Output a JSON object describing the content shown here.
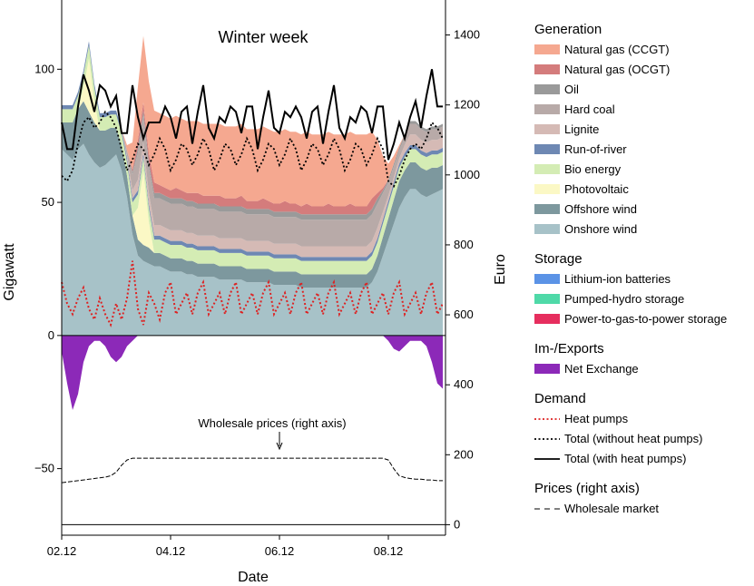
{
  "chart_data": {
    "type": "area",
    "title": "Winter week",
    "xlabel": "Date",
    "ylabel": "Gigawatt",
    "ylabel_right": "Euro",
    "ylim": [
      -75,
      126
    ],
    "ylim_right": [
      -30,
      1500
    ],
    "yticks": [
      -50,
      0,
      50,
      100
    ],
    "ytick_labels": [
      "−50",
      "0",
      "50",
      "100"
    ],
    "yticks_right": [
      0,
      200,
      400,
      600,
      800,
      1000,
      1200,
      1400
    ],
    "ytick_labels_right": [
      "0",
      "200",
      "400",
      "600",
      "800",
      "1000",
      "1200",
      "1400"
    ],
    "xlim_days": [
      2,
      9.05
    ],
    "xticks": [
      2,
      4,
      6,
      8
    ],
    "xtick_labels": [
      "02.12",
      "04.12",
      "06.12",
      "08.12"
    ],
    "series_colors": {
      "onshore": "#a7c2c8",
      "offshore": "#7d989e",
      "pv": "#fbf8c5",
      "bio": "#d4ecb4",
      "ror": "#6e88b3",
      "lignite": "#d5bab5",
      "hardcoal": "#b8aaa8",
      "oil": "#9a9a9a",
      "ocgt": "#d47c7c",
      "ccgt": "#f5a890",
      "battery": "#5b93e6",
      "phs": "#4fd9a8",
      "p2g": "#e62e5e",
      "exchange": "#8c29b8",
      "heatpumps": "#dd2222",
      "demand": "#000000",
      "price": "#000000"
    },
    "annotation": "Wholesale prices (right axis)",
    "annotation_x_day": 6,
    "legend": {
      "sections": [
        {
          "title": "Generation",
          "items": [
            {
              "label": "Natural gas (CCGT)",
              "key": "ccgt",
              "kind": "patch"
            },
            {
              "label": "Natural gas (OCGT)",
              "key": "ocgt",
              "kind": "patch"
            },
            {
              "label": "Oil",
              "key": "oil",
              "kind": "patch"
            },
            {
              "label": "Hard coal",
              "key": "hardcoal",
              "kind": "patch"
            },
            {
              "label": "Lignite",
              "key": "lignite",
              "kind": "patch"
            },
            {
              "label": "Run-of-river",
              "key": "ror",
              "kind": "patch"
            },
            {
              "label": "Bio energy",
              "key": "bio",
              "kind": "patch"
            },
            {
              "label": "Photovoltaic",
              "key": "pv",
              "kind": "patch"
            },
            {
              "label": "Offshore wind",
              "key": "offshore",
              "kind": "patch"
            },
            {
              "label": "Onshore wind",
              "key": "onshore",
              "kind": "patch"
            }
          ]
        },
        {
          "title": "Storage",
          "items": [
            {
              "label": "Lithium-ion batteries",
              "key": "battery",
              "kind": "patch"
            },
            {
              "label": "Pumped-hydro storage",
              "key": "phs",
              "kind": "patch"
            },
            {
              "label": "Power-to-gas-to-power storage",
              "key": "p2g",
              "kind": "patch"
            }
          ]
        },
        {
          "title": "Im-/Exports",
          "items": [
            {
              "label": "Net Exchange",
              "key": "exchange",
              "kind": "patch"
            }
          ]
        },
        {
          "title": "Demand",
          "items": [
            {
              "label": "Heat pumps",
              "key": "heatpumps",
              "kind": "line-dot"
            },
            {
              "label": "Total (without heat pumps)",
              "key": "demand",
              "kind": "line-dot"
            },
            {
              "label": "Total (with heat pumps)",
              "key": "demand",
              "kind": "line-solid"
            }
          ]
        },
        {
          "title": "Prices (right axis)",
          "items": [
            {
              "label": "Wholesale market",
              "key": "price",
              "kind": "line-dash"
            }
          ]
        }
      ]
    },
    "series": {
      "days": [
        2.0,
        2.1,
        2.2,
        2.3,
        2.4,
        2.5,
        2.6,
        2.7,
        2.8,
        2.9,
        3.0,
        3.1,
        3.2,
        3.3,
        3.4,
        3.5,
        3.6,
        3.7,
        3.8,
        3.9,
        4.0,
        4.1,
        4.2,
        4.3,
        4.4,
        4.5,
        4.6,
        4.7,
        4.8,
        4.9,
        5.0,
        5.1,
        5.2,
        5.3,
        5.4,
        5.5,
        5.6,
        5.7,
        5.8,
        5.9,
        6.0,
        6.1,
        6.2,
        6.3,
        6.4,
        6.5,
        6.6,
        6.7,
        6.8,
        6.9,
        7.0,
        7.1,
        7.2,
        7.3,
        7.4,
        7.5,
        7.6,
        7.7,
        7.8,
        7.9,
        8.0,
        8.1,
        8.2,
        8.3,
        8.4,
        8.5,
        8.6,
        8.7,
        8.8,
        8.9,
        9.0
      ],
      "onshore": [
        70,
        68,
        66,
        70,
        72,
        68,
        65,
        63,
        64,
        66,
        68,
        62,
        52,
        38,
        30,
        28,
        27,
        26,
        26,
        25,
        24,
        24,
        24,
        23,
        23,
        22,
        22,
        22,
        22,
        21,
        21,
        21,
        21,
        21,
        20,
        20,
        20,
        20,
        20,
        19,
        19,
        19,
        19,
        19,
        18,
        18,
        18,
        18,
        18,
        18,
        18,
        18,
        18,
        18,
        18,
        18,
        18,
        20,
        24,
        30,
        36,
        42,
        48,
        52,
        55,
        55,
        53,
        52,
        53,
        54,
        55
      ],
      "offshore": [
        10,
        12,
        14,
        15,
        16,
        16,
        15,
        14,
        13,
        12,
        10,
        9,
        8,
        7,
        6,
        6,
        6,
        5,
        5,
        5,
        5,
        5,
        5,
        5,
        5,
        5,
        5,
        5,
        5,
        5,
        5,
        5,
        5,
        5,
        5,
        5,
        5,
        5,
        5,
        5,
        5,
        5,
        5,
        5,
        5,
        5,
        5,
        5,
        5,
        5,
        5,
        5,
        5,
        5,
        5,
        5,
        5,
        5,
        6,
        7,
        8,
        9,
        10,
        10,
        10,
        10,
        10,
        10,
        10,
        9,
        9
      ],
      "pv": [
        0,
        0,
        0,
        0,
        5,
        20,
        8,
        0,
        0,
        0,
        0,
        0,
        0,
        0,
        12,
        28,
        10,
        0,
        0,
        0,
        0,
        0,
        0,
        0,
        0,
        0,
        0,
        0,
        0,
        0,
        0,
        0,
        0,
        0,
        0,
        0,
        0,
        0,
        0,
        0,
        0,
        0,
        0,
        0,
        0,
        0,
        0,
        0,
        0,
        0,
        0,
        0,
        0,
        0,
        0,
        0,
        0,
        0,
        0,
        0,
        0,
        0,
        0,
        0,
        0,
        0,
        0,
        0,
        0,
        0,
        0
      ],
      "bio": [
        5,
        5,
        5,
        5,
        5,
        5,
        5,
        5,
        5,
        5,
        5,
        5,
        5,
        5,
        5,
        5,
        5,
        5,
        5,
        5,
        5,
        5,
        5,
        5,
        5,
        5,
        5,
        5,
        5,
        5,
        5,
        5,
        5,
        5,
        5,
        5,
        5,
        5,
        5,
        5,
        5,
        5,
        5,
        5,
        5,
        5,
        5,
        5,
        5,
        5,
        5,
        5,
        5,
        5,
        5,
        5,
        5,
        5,
        5,
        5,
        5,
        5,
        5,
        5,
        5,
        5,
        5,
        5,
        5,
        5,
        5
      ],
      "ror": [
        1.5,
        1.5,
        1.5,
        1.5,
        1.5,
        1.5,
        1.5,
        1.5,
        1.5,
        1.5,
        1.5,
        1.5,
        1.5,
        1.5,
        1.5,
        1.5,
        1.5,
        1.5,
        1.5,
        1.5,
        1.5,
        1.5,
        1.5,
        1.5,
        1.5,
        1.5,
        1.5,
        1.5,
        1.5,
        1.5,
        1.5,
        1.5,
        1.5,
        1.5,
        1.5,
        1.5,
        1.5,
        1.5,
        1.5,
        1.5,
        1.5,
        1.5,
        1.5,
        1.5,
        1.5,
        1.5,
        1.5,
        1.5,
        1.5,
        1.5,
        1.5,
        1.5,
        1.5,
        1.5,
        1.5,
        1.5,
        1.5,
        1.5,
        1.5,
        1.5,
        1.5,
        1.5,
        1.5,
        1.5,
        1.5,
        1.5,
        1.5,
        1.5,
        1.5,
        1.5,
        1.5
      ],
      "lignite": [
        0,
        0,
        0,
        0,
        0,
        0,
        0,
        0,
        0,
        0,
        0,
        0,
        1,
        3,
        4,
        4,
        4,
        4,
        4,
        4,
        4,
        4,
        4,
        4,
        4,
        4,
        4,
        4,
        4,
        4,
        4,
        4,
        4,
        4,
        4,
        4,
        4,
        4,
        4,
        4,
        4,
        4,
        4,
        4,
        4,
        4,
        4,
        4,
        4,
        4,
        4,
        4,
        4,
        4,
        4,
        4,
        4,
        4,
        4,
        3,
        2,
        2,
        2,
        3,
        4,
        4,
        4,
        4,
        4,
        4,
        4
      ],
      "hardcoal": [
        0,
        0,
        0,
        0,
        0,
        0,
        0,
        0,
        0,
        0,
        0,
        0,
        2,
        6,
        10,
        10,
        10,
        10,
        10,
        10,
        10,
        10,
        10,
        10,
        10,
        10,
        10,
        10,
        10,
        10,
        10,
        10,
        10,
        10,
        10,
        10,
        10,
        10,
        10,
        10,
        10,
        10,
        10,
        10,
        10,
        10,
        10,
        10,
        10,
        10,
        10,
        10,
        10,
        10,
        10,
        10,
        10,
        10,
        9,
        7,
        5,
        4,
        3,
        3,
        4,
        4,
        4,
        4,
        4,
        4,
        4
      ],
      "oil": [
        0,
        0,
        0,
        0,
        0,
        0,
        0,
        0,
        0,
        0,
        0,
        0,
        0,
        1,
        2,
        2,
        2,
        2,
        2,
        2,
        2,
        2,
        2,
        2,
        2,
        2,
        2,
        2,
        2,
        2,
        2,
        2,
        2,
        2,
        2,
        2,
        2,
        2,
        2,
        2,
        2,
        2,
        2,
        2,
        2,
        2,
        2,
        2,
        2,
        2,
        2,
        2,
        2,
        2,
        2,
        2,
        2,
        2,
        2,
        1,
        1,
        1,
        1,
        1,
        1,
        1,
        1,
        1,
        1,
        1,
        1
      ],
      "ocgt": [
        0,
        0,
        0,
        0,
        0,
        0,
        0,
        0,
        0,
        0,
        0,
        0,
        0,
        1,
        3,
        3,
        3,
        4,
        3,
        3,
        3,
        4,
        3,
        3,
        3,
        4,
        3,
        3,
        3,
        4,
        3,
        3,
        3,
        4,
        3,
        3,
        3,
        4,
        3,
        3,
        3,
        4,
        3,
        3,
        3,
        4,
        3,
        3,
        3,
        4,
        3,
        3,
        3,
        4,
        3,
        3,
        3,
        4,
        2,
        1,
        0,
        0,
        0,
        0,
        0,
        0,
        0,
        0,
        0,
        0,
        0
      ],
      "ccgt": [
        0,
        0,
        0,
        0,
        0,
        0,
        0,
        0,
        0,
        0,
        0,
        0,
        2,
        10,
        20,
        25,
        27,
        27,
        27,
        27,
        27,
        27,
        27,
        27,
        27,
        27,
        27,
        27,
        27,
        27,
        27,
        27,
        27,
        27,
        27,
        27,
        27,
        27,
        27,
        27,
        27,
        27,
        27,
        27,
        27,
        27,
        27,
        27,
        27,
        27,
        27,
        27,
        27,
        27,
        27,
        27,
        27,
        25,
        20,
        12,
        6,
        3,
        1,
        0,
        0,
        0,
        0,
        0,
        0,
        0,
        0
      ],
      "battery": [
        0,
        0,
        0,
        0,
        0,
        0,
        0,
        0,
        0,
        0,
        0,
        0,
        0,
        0,
        0,
        0,
        0,
        0,
        0,
        0,
        0,
        0,
        0,
        0,
        0,
        0,
        0,
        0,
        0,
        0,
        0,
        0,
        0,
        0,
        0,
        0,
        0,
        0,
        0,
        0,
        0,
        0,
        0,
        0,
        0,
        0,
        0,
        0,
        0,
        0,
        0,
        0,
        0,
        0,
        0,
        0,
        0,
        0,
        0,
        0,
        0,
        0,
        0,
        0,
        0,
        0,
        0,
        0,
        0,
        0,
        0
      ],
      "phs": [
        0,
        0,
        0,
        0,
        0,
        0,
        0,
        0,
        0,
        0,
        0,
        0,
        0,
        0,
        0,
        0,
        0,
        0,
        0,
        0,
        0,
        0,
        0,
        0,
        0,
        0,
        0,
        0,
        0,
        0,
        0,
        0,
        0,
        0,
        0,
        0,
        0,
        0,
        0,
        0,
        0,
        0,
        0,
        0,
        0,
        0,
        0,
        0,
        0,
        0,
        0,
        0,
        0,
        0,
        0,
        0,
        0,
        0,
        0,
        0,
        0,
        0,
        0,
        0,
        0,
        0,
        0,
        0,
        0,
        0,
        0
      ],
      "exchange": [
        -6,
        -18,
        -28,
        -22,
        -10,
        -4,
        -2,
        -2,
        -4,
        -8,
        -10,
        -8,
        -4,
        -2,
        0,
        0,
        0,
        0,
        0,
        0,
        0,
        0,
        0,
        0,
        0,
        0,
        0,
        0,
        0,
        0,
        0,
        0,
        0,
        0,
        0,
        0,
        0,
        0,
        0,
        0,
        0,
        0,
        0,
        0,
        0,
        0,
        0,
        0,
        0,
        0,
        0,
        0,
        0,
        0,
        0,
        0,
        0,
        0,
        0,
        0,
        -2,
        -5,
        -6,
        -4,
        -2,
        -2,
        -2,
        -4,
        -10,
        -18,
        -20
      ],
      "heatpumps": [
        20,
        12,
        8,
        14,
        18,
        10,
        6,
        14,
        8,
        4,
        12,
        6,
        14,
        28,
        10,
        4,
        16,
        12,
        6,
        16,
        20,
        8,
        12,
        16,
        8,
        16,
        20,
        8,
        12,
        16,
        8,
        16,
        20,
        8,
        12,
        16,
        8,
        16,
        20,
        8,
        12,
        16,
        8,
        16,
        20,
        8,
        12,
        16,
        8,
        16,
        20,
        8,
        12,
        16,
        8,
        16,
        20,
        8,
        12,
        16,
        8,
        16,
        20,
        8,
        12,
        16,
        8,
        16,
        20,
        8,
        12
      ],
      "demand": [
        60,
        58,
        62,
        72,
        80,
        82,
        78,
        80,
        84,
        82,
        78,
        70,
        62,
        66,
        72,
        70,
        64,
        68,
        74,
        70,
        62,
        66,
        72,
        70,
        64,
        68,
        74,
        70,
        62,
        66,
        72,
        70,
        64,
        68,
        74,
        70,
        62,
        66,
        72,
        70,
        64,
        68,
        74,
        70,
        62,
        66,
        72,
        70,
        64,
        68,
        74,
        70,
        62,
        66,
        72,
        70,
        64,
        68,
        74,
        70,
        58,
        56,
        60,
        66,
        70,
        72,
        70,
        74,
        80,
        78,
        74
      ],
      "price": [
        120,
        122,
        124,
        126,
        128,
        130,
        132,
        134,
        136,
        140,
        150,
        170,
        185,
        190,
        190,
        190,
        190,
        190,
        190,
        190,
        190,
        190,
        190,
        190,
        190,
        190,
        190,
        190,
        190,
        190,
        190,
        190,
        190,
        190,
        190,
        190,
        190,
        190,
        190,
        190,
        190,
        190,
        190,
        190,
        190,
        190,
        190,
        190,
        190,
        190,
        190,
        190,
        190,
        190,
        190,
        190,
        190,
        190,
        190,
        190,
        185,
        160,
        140,
        135,
        132,
        130,
        130,
        128,
        128,
        126,
        126
      ]
    }
  }
}
